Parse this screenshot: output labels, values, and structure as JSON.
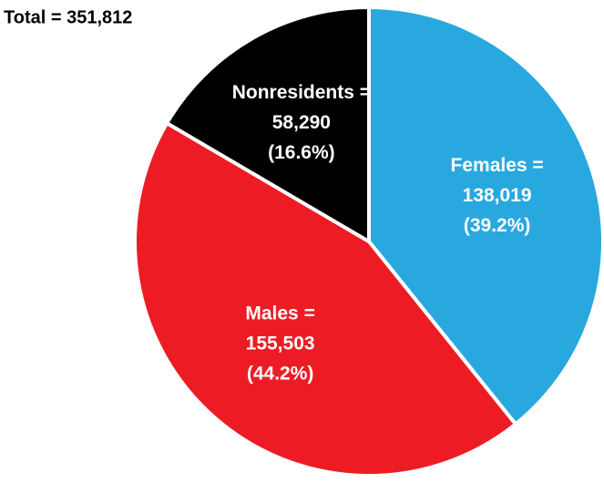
{
  "chart_data": {
    "type": "pie",
    "title": "Total = 351,812",
    "categories": [
      "Females =",
      "Males =",
      "Nonresidents ="
    ],
    "values": [
      138019,
      155503,
      58290
    ],
    "value_labels": [
      "138,019",
      "155,503",
      "58,290"
    ],
    "percent_labels": [
      "(39.2%)",
      "(44.2%)",
      "(16.6%)"
    ],
    "colors": [
      "#29a8e0",
      "#ed1c24",
      "#000000"
    ]
  }
}
